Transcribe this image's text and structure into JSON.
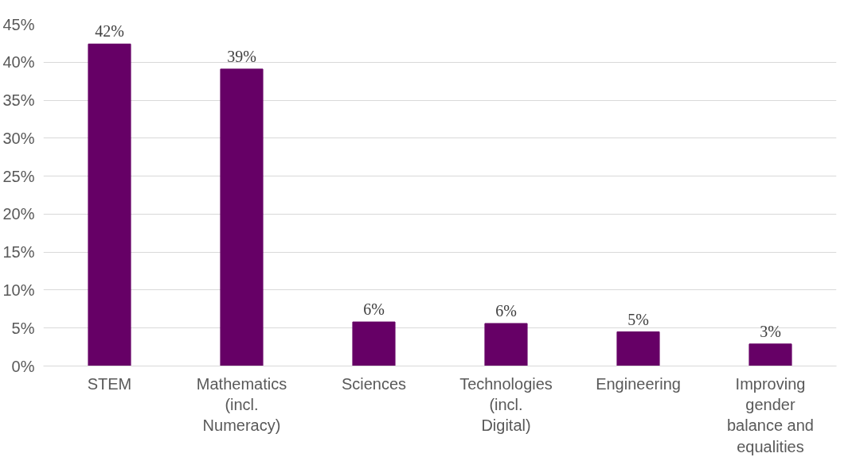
{
  "chart_data": {
    "type": "bar",
    "categories": [
      "STEM",
      "Mathematics (incl. Numeracy)",
      "Sciences",
      "Technologies (incl. Digital)",
      "Engineering",
      "Improving gender balance and equalities"
    ],
    "values": [
      42.4,
      39.1,
      5.8,
      5.6,
      4.5,
      2.9
    ],
    "value_labels": [
      "42%",
      "39%",
      "6%",
      "6%",
      "5%",
      "3%"
    ],
    "color": "#660066",
    "ylim": [
      0,
      45
    ],
    "yticks": [
      {
        "value": 0,
        "label": "0%"
      },
      {
        "value": 5,
        "label": "5%"
      },
      {
        "value": 10,
        "label": "10%"
      },
      {
        "value": 15,
        "label": "15%"
      },
      {
        "value": 20,
        "label": "20%"
      },
      {
        "value": 25,
        "label": "25%"
      },
      {
        "value": 30,
        "label": "30%"
      },
      {
        "value": 35,
        "label": "35%"
      },
      {
        "value": 40,
        "label": "40%"
      },
      {
        "value": 45,
        "label": "45%"
      }
    ],
    "grid": "y"
  }
}
